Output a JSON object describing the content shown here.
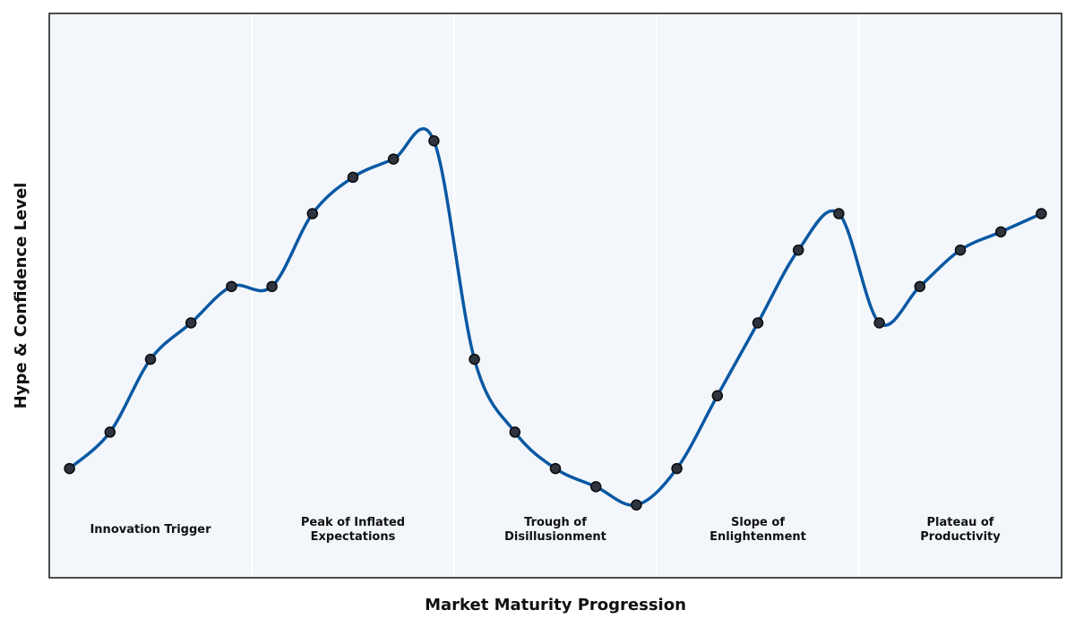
{
  "chart_data": {
    "type": "line",
    "title": "",
    "xlabel": "Market Maturity Progression",
    "ylabel": "Hype & Confidence Level",
    "x": [
      0,
      1,
      2,
      3,
      4,
      5,
      6,
      7,
      8,
      9,
      10,
      11,
      12,
      13,
      14,
      15,
      16,
      17,
      18,
      19,
      20,
      21,
      22,
      23,
      24
    ],
    "series": [
      {
        "values": [
          40,
          50,
          70,
          80,
          90,
          90,
          110,
          120,
          125,
          130,
          70,
          50,
          40,
          35,
          30,
          40,
          60,
          80,
          100,
          110,
          80,
          90,
          100,
          105,
          110
        ]
      }
    ],
    "xlim": [
      -0.5,
      24.5
    ],
    "ylim": [
      10,
      165
    ],
    "grid": false,
    "phases": [
      {
        "lines": [
          "Innovation Trigger"
        ],
        "start": -0.5,
        "end": 4.5,
        "center": 2
      },
      {
        "lines": [
          "Peak of Inflated",
          "Expectations"
        ],
        "start": 4.5,
        "end": 9.5,
        "center": 7
      },
      {
        "lines": [
          "Trough of",
          "Disillusionment"
        ],
        "start": 9.5,
        "end": 14.5,
        "center": 12
      },
      {
        "lines": [
          "Slope of",
          "Enlightenment"
        ],
        "start": 14.5,
        "end": 19.5,
        "center": 17
      },
      {
        "lines": [
          "Plateau of",
          "Productivity"
        ],
        "start": 19.5,
        "end": 24.5,
        "center": 22
      }
    ],
    "colors": {
      "line": "#0a58a3",
      "marker_fill": "#2d3440",
      "marker_edge": "#0a0a0a",
      "plot_bg": "#f3f7fb",
      "phase_divider": "#ffffff",
      "frame": "#222222"
    }
  }
}
